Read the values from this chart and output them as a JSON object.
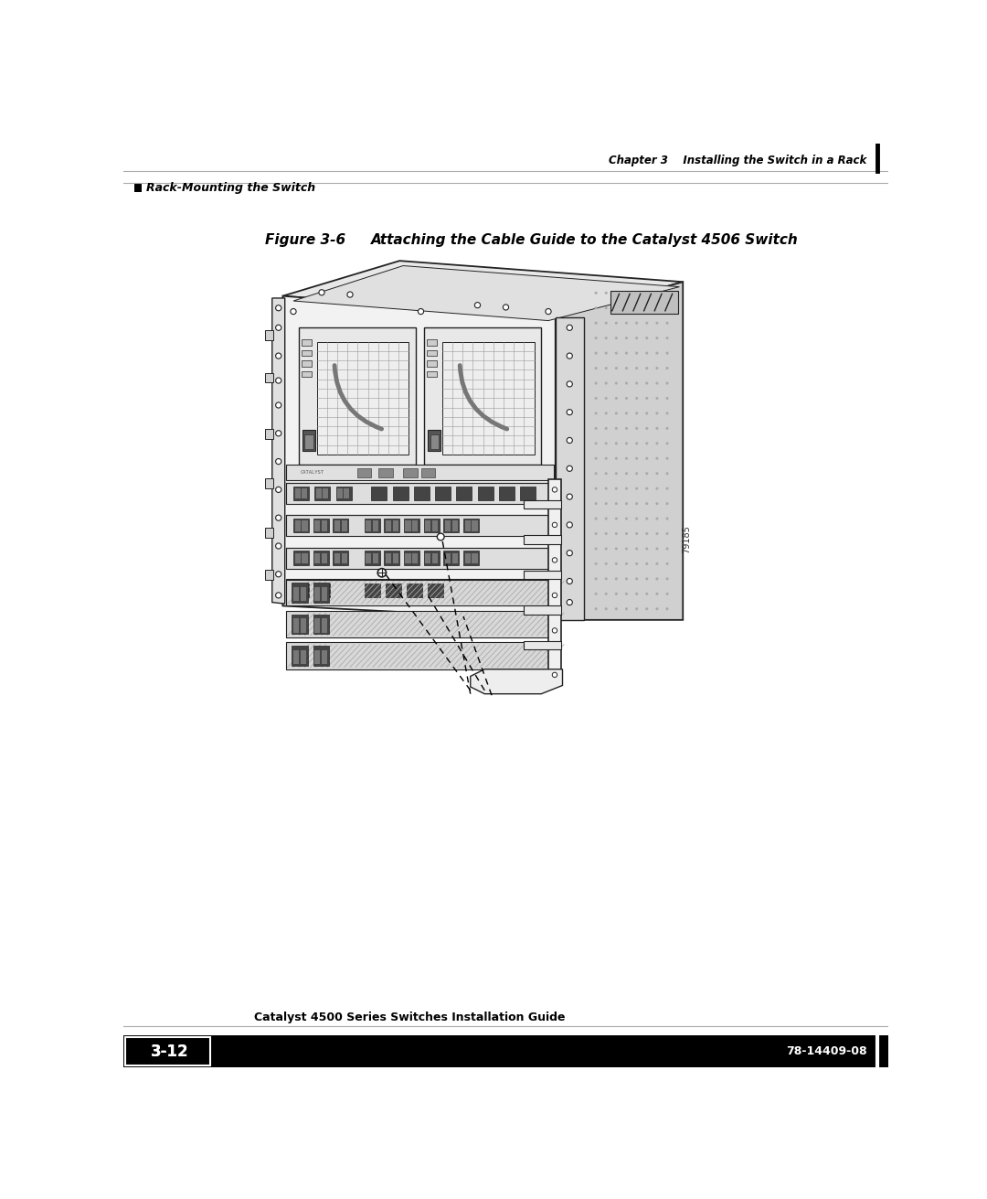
{
  "page_bg": "#ffffff",
  "header_line_color": "#aaaaaa",
  "header_text_right": "Chapter 3    Installing the Switch in a Rack",
  "header_text_left": "Rack-Mounting the Switch",
  "figure_label": "Figure 3-6",
  "figure_title": "Attaching the Cable Guide to the Catalyst 4506 Switch",
  "footer_text_left_box": "3-12",
  "footer_text_center": "Catalyst 4500 Series Switches Installation Guide",
  "footer_text_right": "78-14409-08",
  "body_text_color": "#000000"
}
